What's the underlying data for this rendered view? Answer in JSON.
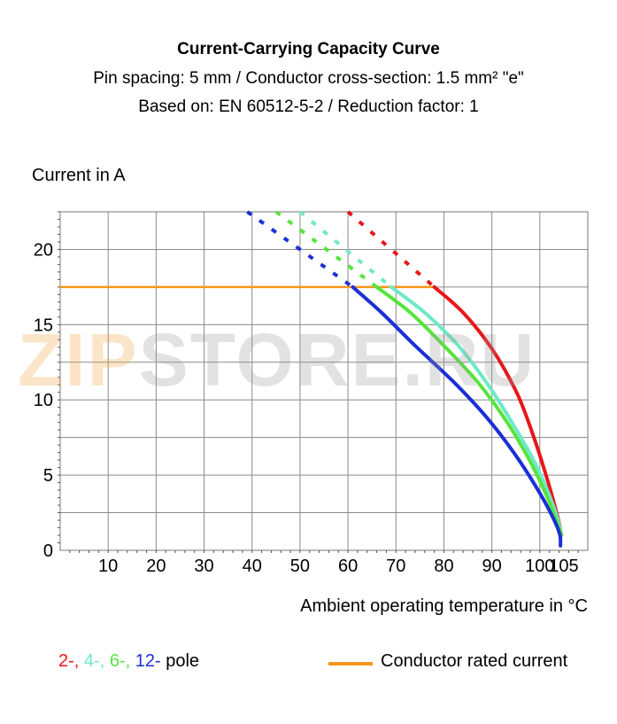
{
  "header": {
    "title": "Current-Carrying Capacity Curve",
    "subtitle_1": "Pin spacing: 5 mm / Conductor cross-section: 1.5 mm² \"e\"",
    "subtitle_2": "Based on: EN 60512-5-2 / Reduction factor: 1"
  },
  "watermark": {
    "part_a": "ZIP",
    "part_b": "STORE.RU"
  },
  "legend": {
    "poles": [
      {
        "text": "2-",
        "color": "#e8161b"
      },
      {
        "text": "4-",
        "color": "#6ee9c8"
      },
      {
        "text": "6-",
        "color": "#57e43d"
      },
      {
        "text": "12-",
        "color": "#1a2fd6"
      }
    ],
    "pole_suffix": " pole",
    "rated_label": "Conductor rated current",
    "rated_color": "#f7961e"
  },
  "chart_data": {
    "type": "line",
    "xlabel": "Ambient operating temperature in °C",
    "ylabel": "Current in A",
    "xlim": [
      0,
      110
    ],
    "ylim": [
      0,
      22.5
    ],
    "x_ticks": [
      10,
      20,
      30,
      40,
      50,
      60,
      70,
      80,
      90,
      100,
      105
    ],
    "y_ticks": [
      0,
      5,
      10,
      15,
      20
    ],
    "grid": true,
    "rated_current": 17.5,
    "series": [
      {
        "name": "2-",
        "color": "#e8161b",
        "dashed": [
          [
            60,
            22.5
          ],
          [
            78,
            17.5
          ]
        ],
        "solid": [
          [
            78,
            17.5
          ],
          [
            84,
            15.8
          ],
          [
            90,
            13.4
          ],
          [
            95,
            10.6
          ],
          [
            98,
            8.2
          ],
          [
            101,
            5.3
          ],
          [
            103.5,
            2.5
          ],
          [
            104.5,
            1.0
          ]
        ]
      },
      {
        "name": "4-",
        "color": "#6ee9c8",
        "dashed": [
          [
            50,
            22.5
          ],
          [
            69,
            17.5
          ]
        ],
        "solid": [
          [
            69,
            17.5
          ],
          [
            76,
            15.8
          ],
          [
            83,
            13.6
          ],
          [
            89,
            11.1
          ],
          [
            94,
            8.6
          ],
          [
            99,
            5.8
          ],
          [
            103,
            2.8
          ],
          [
            104.5,
            1.0
          ]
        ]
      },
      {
        "name": "6-",
        "color": "#57e43d",
        "dashed": [
          [
            45,
            22.5
          ],
          [
            66,
            17.5
          ]
        ],
        "solid": [
          [
            66,
            17.5
          ],
          [
            73,
            15.8
          ],
          [
            80,
            13.6
          ],
          [
            87,
            11.2
          ],
          [
            93,
            8.6
          ],
          [
            98,
            5.9
          ],
          [
            102,
            3.2
          ],
          [
            104.5,
            1.0
          ]
        ]
      },
      {
        "name": "12-",
        "color": "#1a2fd6",
        "dashed": [
          [
            39,
            22.5
          ],
          [
            61,
            17.5
          ]
        ],
        "solid": [
          [
            61,
            17.5
          ],
          [
            67,
            15.8
          ],
          [
            74,
            13.6
          ],
          [
            82,
            11.2
          ],
          [
            89,
            8.8
          ],
          [
            95,
            6.3
          ],
          [
            100,
            3.8
          ],
          [
            103,
            2.0
          ],
          [
            104.2,
            1.0
          ],
          [
            104.3,
            0.3
          ]
        ]
      }
    ]
  }
}
